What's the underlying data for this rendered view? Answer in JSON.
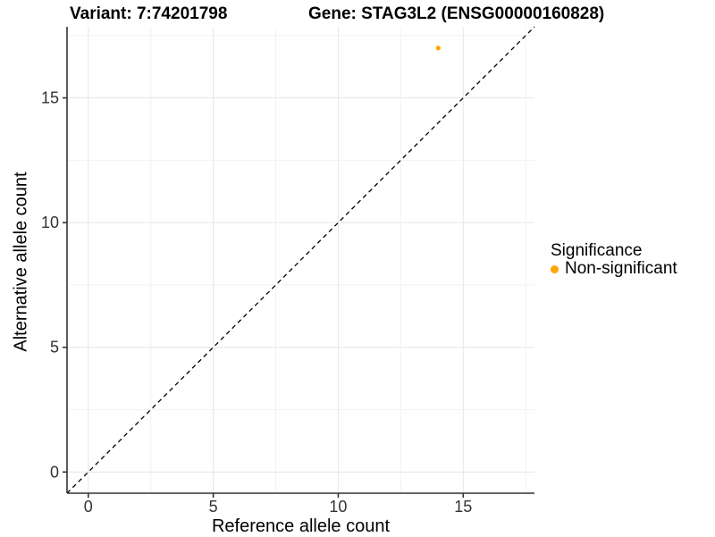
{
  "chart_data": {
    "type": "scatter",
    "titles": [
      "Variant: 7:74201798",
      "Gene: STAG3L2 (ENSG00000160828)"
    ],
    "xlabel": "Reference allele count",
    "ylabel": "Alternative allele count",
    "xlim": [
      -0.85,
      17.85
    ],
    "ylim": [
      -0.85,
      17.85
    ],
    "xticks": [
      0,
      5,
      10,
      15
    ],
    "yticks": [
      0,
      5,
      10,
      15
    ],
    "minor_ticks": [
      2.5,
      7.5,
      12.5,
      17.5
    ],
    "grid": "major+minor",
    "legend_position": "right",
    "series": [
      {
        "name": "Non-significant",
        "color": "#FFA500",
        "points": [
          [
            14,
            17
          ]
        ]
      }
    ],
    "identity_line": {
      "style": "dashed",
      "color": "#000000"
    },
    "colors": {
      "grid_major": "#e6e6e6",
      "grid_minor": "#f2f2f2",
      "axis": "#333333",
      "tick_label": "#333333",
      "background": "#ffffff"
    }
  },
  "legend": {
    "title": "Significance",
    "items": [
      {
        "label": "Non-significant",
        "color": "#FFA500",
        "marker": "circle-icon"
      }
    ]
  }
}
